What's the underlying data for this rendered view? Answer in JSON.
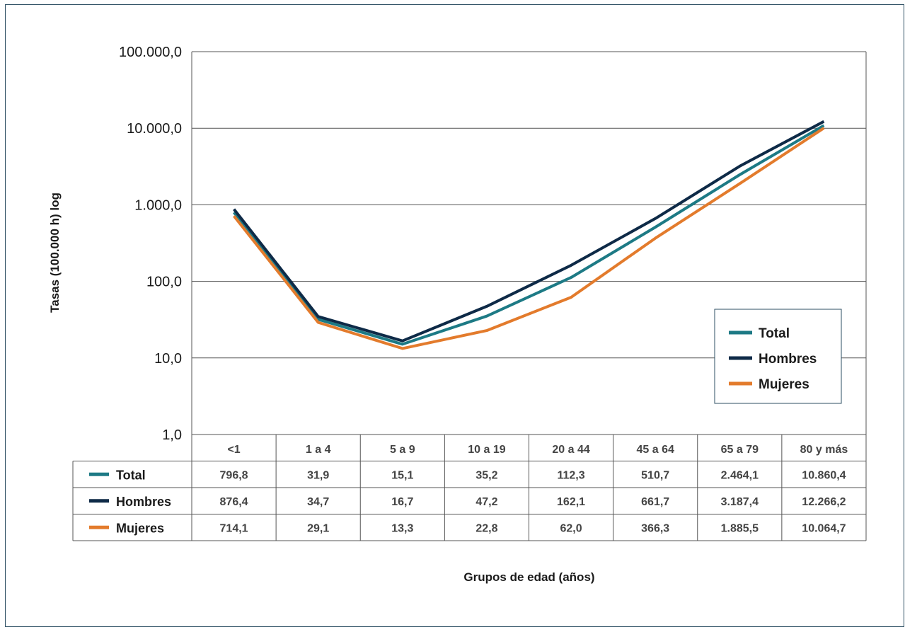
{
  "chart_data": {
    "type": "line",
    "yscale": "log",
    "ylabel": "Tasas (100.000 h) log",
    "xlabel": "Grupos de edad (años)",
    "ylim": [
      1,
      100000
    ],
    "yticks": [
      "1,0",
      "10,0",
      "100,0",
      "1.000,0",
      "10.000,0",
      "100.000,0"
    ],
    "categories": [
      "<1",
      "1 a 4",
      "5 a 9",
      "10 a 19",
      "20 a 44",
      "45 a 64",
      "65 a 79",
      "80 y más"
    ],
    "grid": "horizontal",
    "legend_position": "right",
    "series": [
      {
        "name": "Total",
        "color": "#1d7a85",
        "values": [
          796.8,
          31.9,
          15.1,
          35.2,
          112.3,
          510.7,
          2464.1,
          10860.4
        ],
        "labels": [
          "796,8",
          "31,9",
          "15,1",
          "35,2",
          "112,3",
          "510,7",
          "2.464,1",
          "10.860,4"
        ]
      },
      {
        "name": "Hombres",
        "color": "#0e2a47",
        "values": [
          876.4,
          34.7,
          16.7,
          47.2,
          162.1,
          661.7,
          3187.4,
          12266.2
        ],
        "labels": [
          "876,4",
          "34,7",
          "16,7",
          "47,2",
          "162,1",
          "661,7",
          "3.187,4",
          "12.266,2"
        ]
      },
      {
        "name": "Mujeres",
        "color": "#e37b2c",
        "values": [
          714.1,
          29.1,
          13.3,
          22.8,
          62.0,
          366.3,
          1885.5,
          10064.7
        ],
        "labels": [
          "714,1",
          "29,1",
          "13,3",
          "22,8",
          "62,0",
          "366,3",
          "1.885,5",
          "10.064,7"
        ]
      }
    ]
  }
}
